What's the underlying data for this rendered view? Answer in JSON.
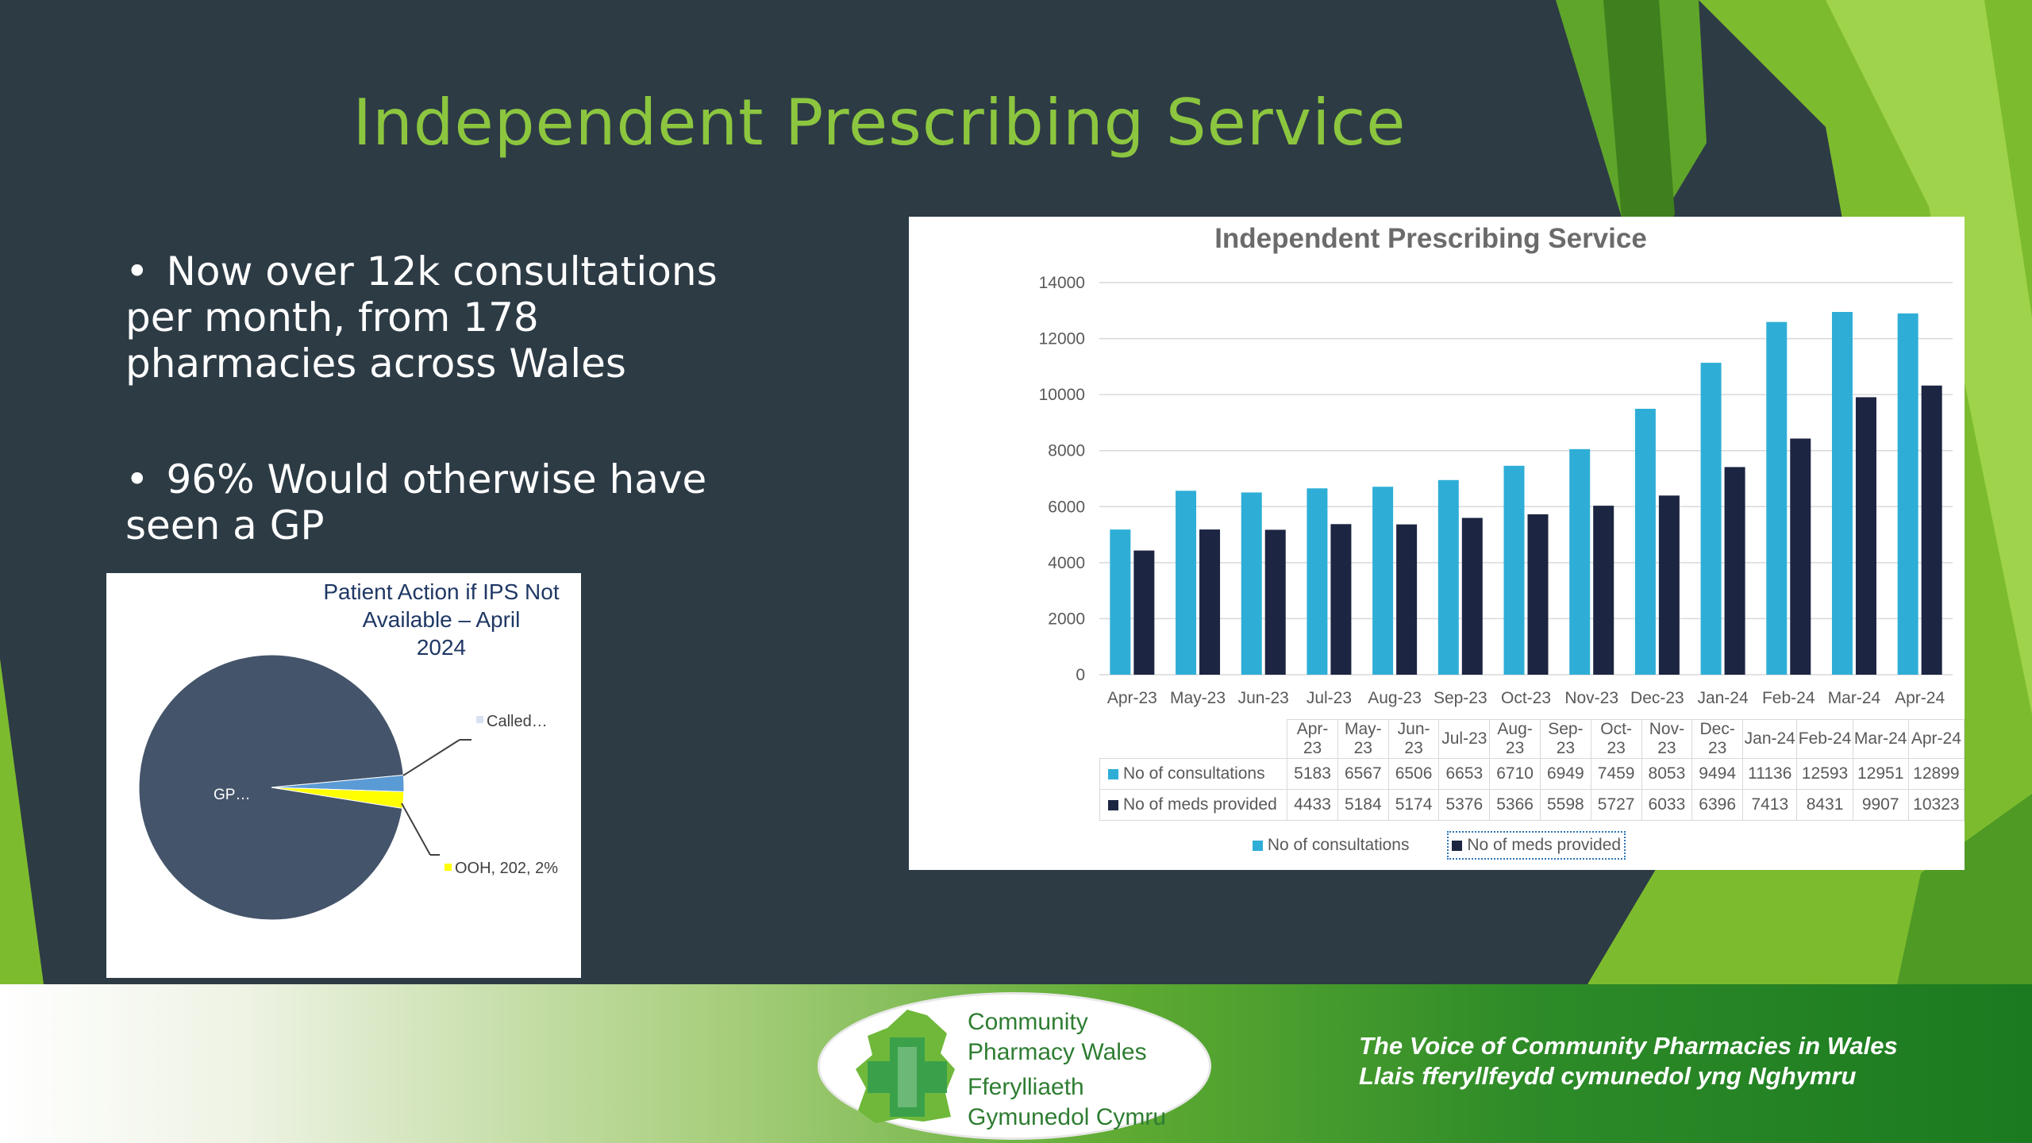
{
  "slide": {
    "title": "Independent Prescribing Service",
    "bullets": [
      "Now over 12k consultations per month, from 178 pharmacies across Wales",
      "96% Would otherwise have seen a GP"
    ],
    "bullet_glyph": "•"
  },
  "pie_chart": {
    "title_line1": "Patient Action if IPS Not Available – April",
    "title_line2": "2024",
    "labels": {
      "gp": "GP…",
      "called": "Called…",
      "ooh": "OOH, 202, 2%"
    }
  },
  "bar_chart": {
    "title": "Independent Prescribing Service",
    "y_ticks": [
      "0",
      "2000",
      "4000",
      "6000",
      "8000",
      "10000",
      "12000",
      "14000"
    ],
    "legend": [
      "No of consultations",
      "No of meds provided"
    ]
  },
  "chart_data": [
    {
      "type": "bar",
      "title": "Independent Prescribing Service",
      "categories": [
        "Apr-23",
        "May-23",
        "Jun-23",
        "Jul-23",
        "Aug-23",
        "Sep-23",
        "Oct-23",
        "Nov-23",
        "Dec-23",
        "Jan-24",
        "Feb-24",
        "Mar-24",
        "Apr-24"
      ],
      "series": [
        {
          "name": "No of consultations",
          "values": [
            5183,
            6567,
            6506,
            6653,
            6710,
            6949,
            7459,
            8053,
            9494,
            11136,
            12593,
            12951,
            12899
          ],
          "color": "#2eaed6"
        },
        {
          "name": "No of meds provided",
          "values": [
            4433,
            5184,
            5174,
            5376,
            5366,
            5598,
            5727,
            6033,
            6396,
            7413,
            8431,
            9907,
            10323
          ],
          "color": "#1c2541"
        }
      ],
      "ylim": [
        0,
        14000
      ],
      "grid": true,
      "legend": "bottom",
      "data_table": true
    },
    {
      "type": "pie",
      "title": "Patient Action if IPS Not Available – April 2024",
      "slices": [
        {
          "label": "GP",
          "percent": 96,
          "color": "#44546a"
        },
        {
          "label": "Called…",
          "percent": 2,
          "color": "#5b9bd5"
        },
        {
          "label": "OOH",
          "value": 202,
          "percent": 2,
          "color": "#ffff00"
        }
      ]
    }
  ],
  "footer": {
    "logo_lines": [
      "Community",
      "Pharmacy Wales",
      "Fferylliaeth",
      "Gymunedol Cymru"
    ],
    "tagline_en": "The Voice of Community Pharmacies in Wales",
    "tagline_cy": "Llais fferyllfeydd cymunedol yng Nghymru"
  },
  "colors": {
    "background": "#2d3b45",
    "title_green": "#8cc63f",
    "consultations": "#2eaed6",
    "meds": "#1c2541",
    "footer_green": "#2e7d32"
  }
}
